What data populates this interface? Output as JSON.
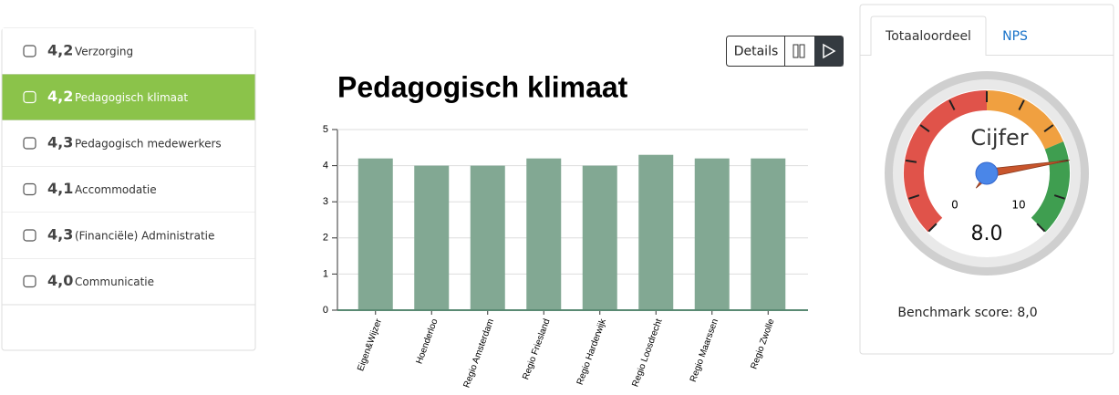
{
  "sidebar": {
    "active": 1,
    "items": [
      {
        "score": "4,2",
        "label": "Verzorging"
      },
      {
        "score": "4,2",
        "label": "Pedagogisch klimaat"
      },
      {
        "score": "4,3",
        "label": "Pedagogisch medewerkers"
      },
      {
        "score": "4,1",
        "label": "Accommodatie"
      },
      {
        "score": "4,3",
        "label": "(Financiële) Administratie"
      },
      {
        "score": "4,0",
        "label": "Communicatie"
      }
    ]
  },
  "toolbar": {
    "details": "Details"
  },
  "chart_data": {
    "type": "bar",
    "title": "Pedagogisch klimaat",
    "categories": [
      "Eigen&Wijzer",
      "Hoenderloo",
      "Regio Amsterdam",
      "Regio Friesland",
      "Regio Harderwijk",
      "Regio Loosdrecht",
      "Regio Maarssen",
      "Regio Zwolle"
    ],
    "values": [
      4.2,
      4.0,
      4.0,
      4.2,
      4.0,
      4.3,
      4.2,
      4.2
    ],
    "color": "#82a893",
    "ylim": [
      0,
      5
    ],
    "yticks": [
      0,
      1,
      2,
      3,
      4,
      5
    ],
    "grid": true
  },
  "tabs": {
    "active": 0,
    "items": [
      "Totaaloordeel",
      "NPS"
    ]
  },
  "gauge": {
    "title": "Cijfer",
    "min": 0,
    "max": 10,
    "value": 8,
    "value_label": "8.0",
    "bands": [
      {
        "from": 0,
        "to": 5,
        "color": "#e0534a"
      },
      {
        "from": 5,
        "to": 7.5,
        "color": "#f0a040"
      },
      {
        "from": 7.5,
        "to": 10,
        "color": "#3f9e50"
      }
    ]
  },
  "benchmark": "Benchmark score: 8,0"
}
